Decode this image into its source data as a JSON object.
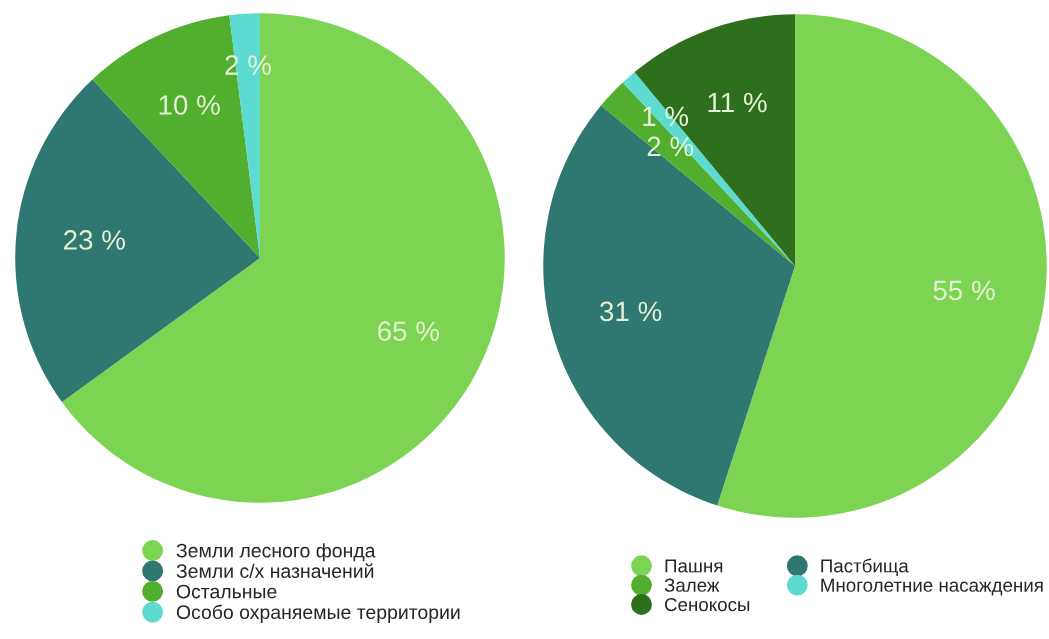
{
  "chart_data": [
    {
      "type": "pie",
      "categories": [
        "Земли лесного фонда",
        "Земли с/х назначений",
        "Остальные",
        "Особо охраняемые территории"
      ],
      "values": [
        65,
        23,
        10,
        2
      ],
      "colors": [
        "#7dd452",
        "#2f7771",
        "#52ae2e",
        "#5ddbd0"
      ],
      "value_labels": [
        "65 %",
        "23 %",
        "10 %",
        "2 %"
      ],
      "legend": "bottom"
    },
    {
      "type": "pie",
      "categories": [
        "Пашня",
        "Пастбища",
        "Залеж",
        "Многолетние насаждения",
        "Сенокосы"
      ],
      "values": [
        55,
        31,
        2,
        1,
        11
      ],
      "colors": [
        "#7dd452",
        "#2f7771",
        "#52ae2e",
        "#5ddbd0",
        "#2e6f1d"
      ],
      "value_labels": [
        "55 %",
        "31 %",
        "2 %",
        "1 %",
        "11 %"
      ],
      "legend": "bottom"
    }
  ]
}
